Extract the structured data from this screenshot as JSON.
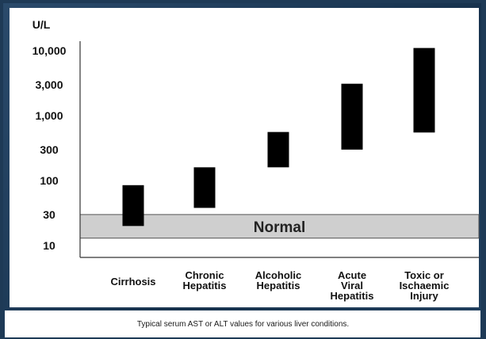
{
  "chart_data": {
    "type": "range-bar",
    "yscale": "log",
    "ylabel": "U/L",
    "ylim": [
      10,
      10000
    ],
    "y_ticks": [
      {
        "value": 10,
        "label": "10"
      },
      {
        "value": 30,
        "label": "30"
      },
      {
        "value": 100,
        "label": "100"
      },
      {
        "value": 300,
        "label": "300"
      },
      {
        "value": 1000,
        "label": "1,000"
      },
      {
        "value": 3000,
        "label": "3,000"
      },
      {
        "value": 10000,
        "label": "10,000"
      }
    ],
    "normal_band": {
      "label": "Normal",
      "low": 13,
      "high": 30
    },
    "bars": [
      {
        "category": "Cirrhosis",
        "label_lines": [
          "Cirrhosis"
        ],
        "low": 20,
        "high": 85
      },
      {
        "category": "Chronic Hepatitis",
        "label_lines": [
          "Chronic",
          "Hepatitis"
        ],
        "low": 38,
        "high": 160
      },
      {
        "category": "Alcoholic Hepatitis",
        "label_lines": [
          "Alcoholic",
          "Hepatitis"
        ],
        "low": 160,
        "high": 560
      },
      {
        "category": "Acute Viral Hepatitis",
        "label_lines": [
          "Acute",
          "Viral",
          "Hepatitis"
        ],
        "low": 300,
        "high": 3100
      },
      {
        "category": "Toxic or Ischaemic Injury",
        "label_lines": [
          "Toxic or",
          "Ischaemic",
          "Injury"
        ],
        "low": 550,
        "high": 11000
      }
    ],
    "caption": "Typical serum AST or ALT values for various liver conditions.",
    "colors": {
      "bar": "#000000",
      "band": "#cfcfcf",
      "axis": "#333333"
    }
  }
}
